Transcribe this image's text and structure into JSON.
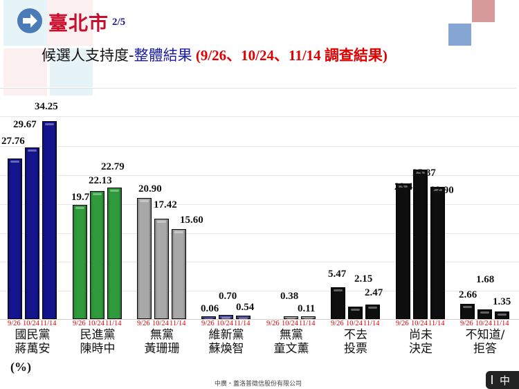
{
  "header": {
    "city": "臺北市",
    "page": "2/5",
    "subtitle_a": "候選人支持度-",
    "subtitle_b": "整體結果",
    "subtitle_c": " (9/26、10/24、11/14 調查結果)"
  },
  "footer": {
    "company": "中廣・蓋洛普徵信股份有限公司",
    "ime_label": "中"
  },
  "colors": {
    "kmt": "#14148c",
    "dpp": "#2e9a3c",
    "ind": "#a8a8a8",
    "new": "#4a4a9e",
    "black": "#0e0e0e",
    "title_red": "#c8102e",
    "date_red": "#dd0000"
  },
  "chart_data": {
    "type": "bar",
    "title": "臺北市 候選人支持度-整體結果 (9/26、10/24、11/14 調查結果)",
    "ylabel": "(%)",
    "xlabel": "",
    "series_names": [
      "9/26",
      "10/24",
      "11/14"
    ],
    "categories": [
      {
        "line1": "國民黨",
        "line2": "蔣萬安",
        "values": [
          27.76,
          29.67,
          34.25
        ],
        "labels": [
          "27.76",
          "29.67",
          "34.25"
        ],
        "color": "kmt"
      },
      {
        "line1": "民進黨",
        "line2": "陳時中",
        "values": [
          19.72,
          22.13,
          22.79
        ],
        "labels": [
          "19.72",
          "22.13",
          "22.79"
        ],
        "color": "dpp"
      },
      {
        "line1": "無黨",
        "line2": "黃珊珊",
        "values": [
          20.9,
          17.42,
          15.6
        ],
        "labels": [
          "20.90",
          "17.42",
          "15.60"
        ],
        "color": "ind"
      },
      {
        "line1": "維新黨",
        "line2": "蘇煥智",
        "values": [
          0.06,
          0.7,
          0.54
        ],
        "labels": [
          "0.06",
          "0.70",
          "0.54"
        ],
        "color": "new"
      },
      {
        "line1": "無黨",
        "line2": "童文薰",
        "values": [
          0,
          0.38,
          0.11
        ],
        "labels": [
          "",
          "0.38",
          "0.11"
        ],
        "color": "ind"
      },
      {
        "line1": "不去",
        "line2": "投票",
        "values": [
          5.47,
          2.15,
          2.47
        ],
        "labels": [
          "5.47",
          "2.15",
          "2.47"
        ],
        "color": "black"
      },
      {
        "line1": "尚未",
        "line2": "決定",
        "values": [
          23.42,
          25.87,
          22.9
        ],
        "labels": [
          "23.42",
          "25.87",
          "22.90"
        ],
        "color": "black"
      },
      {
        "line1": "不知道/",
        "line2": "拒答",
        "values": [
          2.66,
          1.68,
          1.35
        ],
        "labels": [
          "2.66",
          "1.68",
          "1.35"
        ],
        "color": "black"
      }
    ],
    "grid": true,
    "legend": "none (dates under each bar)"
  }
}
